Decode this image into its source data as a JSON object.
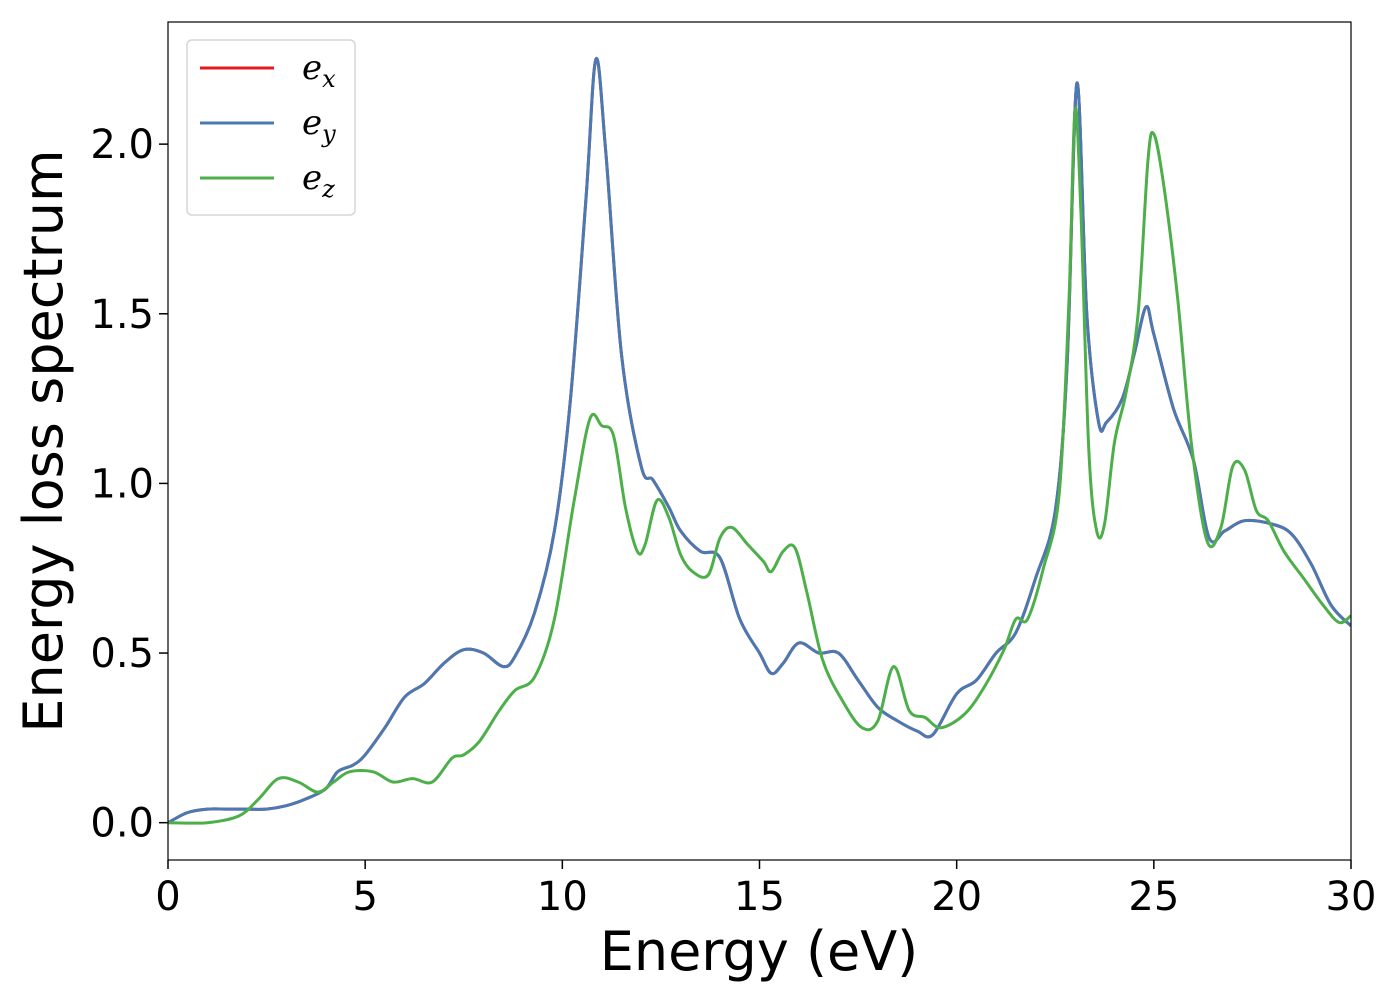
{
  "chart_data": {
    "type": "line",
    "xlabel": "Energy (eV)",
    "ylabel": "Energy loss spectrum",
    "xlim": [
      0,
      30
    ],
    "ylim": [
      -0.11,
      2.36
    ],
    "xticks": [
      0,
      5,
      10,
      15,
      20,
      25,
      30
    ],
    "yticks": [
      0.0,
      0.5,
      1.0,
      1.5,
      2.0
    ],
    "xtick_labels": [
      "0",
      "5",
      "10",
      "15",
      "20",
      "25",
      "30"
    ],
    "ytick_labels": [
      "0.0",
      "0.5",
      "1.0",
      "1.5",
      "2.0"
    ],
    "grid": false,
    "legend_position": "upper-left",
    "series": [
      {
        "name": "e_x",
        "legend_base": "e",
        "legend_sub": "x",
        "color": "#e41a1c",
        "x": [
          0,
          0.5,
          1,
          1.5,
          2,
          2.5,
          3,
          3.5,
          4,
          4.3,
          4.7,
          5,
          5.5,
          6,
          6.5,
          7,
          7.5,
          8,
          8.5,
          8.8,
          9.3,
          9.8,
          10.2,
          10.6,
          10.85,
          11.1,
          11.5,
          12,
          12.3,
          12.7,
          13,
          13.5,
          14,
          14.5,
          15,
          15.3,
          15.6,
          16,
          16.5,
          17,
          17.5,
          18,
          18.5,
          19,
          19.4,
          20,
          20.5,
          21,
          21.5,
          22,
          22.5,
          22.8,
          23.05,
          23.3,
          23.6,
          23.8,
          24.2,
          24.5,
          24.8,
          25,
          25.5,
          26,
          26.4,
          26.8,
          27.3,
          28,
          28.5,
          29,
          29.5,
          30
        ],
        "y": [
          0.0,
          0.03,
          0.04,
          0.04,
          0.04,
          0.04,
          0.05,
          0.07,
          0.1,
          0.15,
          0.17,
          0.2,
          0.28,
          0.37,
          0.41,
          0.47,
          0.51,
          0.5,
          0.46,
          0.49,
          0.62,
          0.86,
          1.24,
          1.84,
          2.25,
          1.98,
          1.38,
          1.05,
          1.01,
          0.93,
          0.86,
          0.8,
          0.78,
          0.6,
          0.5,
          0.44,
          0.47,
          0.53,
          0.5,
          0.5,
          0.42,
          0.34,
          0.3,
          0.27,
          0.26,
          0.38,
          0.42,
          0.5,
          0.56,
          0.72,
          0.92,
          1.35,
          2.18,
          1.5,
          1.18,
          1.18,
          1.25,
          1.38,
          1.52,
          1.44,
          1.22,
          1.07,
          0.84,
          0.86,
          0.89,
          0.88,
          0.85,
          0.76,
          0.64,
          0.58
        ]
      },
      {
        "name": "e_y",
        "legend_base": "e",
        "legend_sub": "y",
        "color": "#4a7ab3",
        "x": [
          0,
          0.5,
          1,
          1.5,
          2,
          2.5,
          3,
          3.5,
          4,
          4.3,
          4.7,
          5,
          5.5,
          6,
          6.5,
          7,
          7.5,
          8,
          8.5,
          8.8,
          9.3,
          9.8,
          10.2,
          10.6,
          10.85,
          11.1,
          11.5,
          12,
          12.3,
          12.7,
          13,
          13.5,
          14,
          14.5,
          15,
          15.3,
          15.6,
          16,
          16.5,
          17,
          17.5,
          18,
          18.5,
          19,
          19.4,
          20,
          20.5,
          21,
          21.5,
          22,
          22.5,
          22.8,
          23.05,
          23.3,
          23.6,
          23.8,
          24.2,
          24.5,
          24.8,
          25,
          25.5,
          26,
          26.4,
          26.8,
          27.3,
          28,
          28.5,
          29,
          29.5,
          30
        ],
        "y": [
          0.0,
          0.03,
          0.04,
          0.04,
          0.04,
          0.04,
          0.05,
          0.07,
          0.1,
          0.15,
          0.17,
          0.2,
          0.28,
          0.37,
          0.41,
          0.47,
          0.51,
          0.5,
          0.46,
          0.49,
          0.62,
          0.86,
          1.24,
          1.84,
          2.25,
          1.98,
          1.38,
          1.05,
          1.01,
          0.93,
          0.86,
          0.8,
          0.78,
          0.6,
          0.5,
          0.44,
          0.47,
          0.53,
          0.5,
          0.5,
          0.42,
          0.34,
          0.3,
          0.27,
          0.26,
          0.38,
          0.42,
          0.5,
          0.56,
          0.72,
          0.92,
          1.35,
          2.18,
          1.5,
          1.18,
          1.18,
          1.25,
          1.38,
          1.52,
          1.44,
          1.22,
          1.07,
          0.84,
          0.86,
          0.89,
          0.88,
          0.85,
          0.76,
          0.64,
          0.58
        ]
      },
      {
        "name": "e_z",
        "legend_base": "e",
        "legend_sub": "z",
        "color": "#4daf4a",
        "x": [
          0,
          1,
          1.8,
          2.3,
          2.8,
          3.3,
          3.8,
          4.2,
          4.6,
          5.2,
          5.7,
          6.2,
          6.7,
          7.2,
          7.5,
          7.9,
          8.4,
          8.8,
          9.3,
          9.8,
          10.3,
          10.7,
          11.0,
          11.3,
          11.6,
          11.9,
          12.1,
          12.4,
          12.7,
          13.0,
          13.3,
          13.7,
          14.0,
          14.3,
          14.7,
          15.1,
          15.3,
          15.6,
          15.9,
          16.2,
          16.6,
          17.1,
          17.6,
          18.0,
          18.4,
          18.8,
          19.2,
          19.6,
          20.2,
          20.7,
          21.2,
          21.5,
          21.8,
          22.2,
          22.6,
          22.85,
          23.0,
          23.15,
          23.35,
          23.55,
          23.75,
          24.0,
          24.3,
          24.6,
          24.85,
          25.0,
          25.25,
          25.6,
          25.95,
          26.35,
          26.7,
          27.0,
          27.3,
          27.6,
          27.9,
          28.3,
          28.8,
          29.3,
          29.7,
          30
        ],
        "y": [
          0.0,
          0.0,
          0.02,
          0.07,
          0.13,
          0.12,
          0.09,
          0.12,
          0.15,
          0.15,
          0.12,
          0.13,
          0.12,
          0.19,
          0.2,
          0.24,
          0.33,
          0.39,
          0.43,
          0.6,
          0.95,
          1.19,
          1.17,
          1.14,
          0.93,
          0.8,
          0.82,
          0.95,
          0.9,
          0.79,
          0.74,
          0.73,
          0.84,
          0.87,
          0.82,
          0.77,
          0.74,
          0.8,
          0.81,
          0.68,
          0.48,
          0.36,
          0.28,
          0.3,
          0.46,
          0.33,
          0.31,
          0.28,
          0.32,
          0.4,
          0.51,
          0.6,
          0.6,
          0.75,
          0.97,
          1.55,
          2.1,
          1.8,
          1.1,
          0.86,
          0.88,
          1.12,
          1.27,
          1.5,
          1.95,
          2.03,
          1.88,
          1.55,
          1.12,
          0.83,
          0.87,
          1.05,
          1.04,
          0.92,
          0.89,
          0.8,
          0.72,
          0.64,
          0.59,
          0.61
        ]
      }
    ]
  }
}
